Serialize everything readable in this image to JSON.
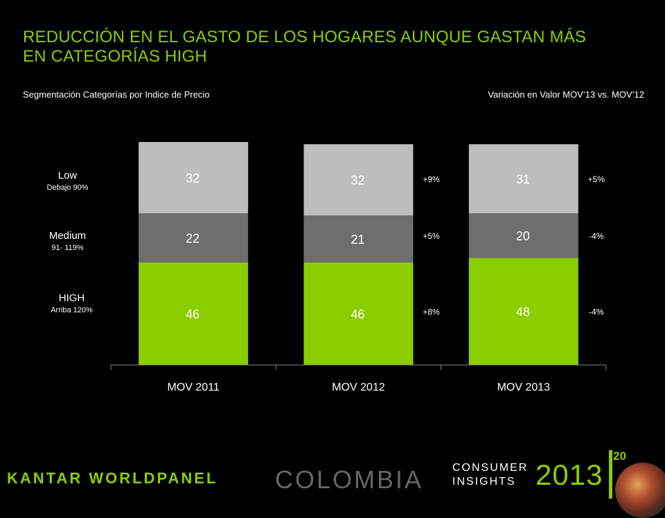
{
  "header": {
    "title_line1": "REDUCCIÓN EN EL GASTO DE LOS HOGARES AUNQUE GASTAN MÁS",
    "title_line2": "EN CATEGORÍAS HIGH",
    "subtitle_left": "Segmentación Categorías por Indice de Precio",
    "subtitle_right": "Variación  en Valor MOV’13 vs. MOV’12"
  },
  "segments": [
    {
      "name": "Low",
      "range": "Debajo 90%"
    },
    {
      "name": "Medium",
      "range": "91- 119%"
    },
    {
      "name": "HIGH",
      "range": "Arriba 120%"
    }
  ],
  "chart_data": {
    "type": "bar",
    "stacked": true,
    "normalized_100": true,
    "categories": [
      "MOV 2011",
      "MOV 2012",
      "MOV 2013"
    ],
    "series": [
      {
        "key": "high",
        "values": [
          46,
          46,
          48
        ],
        "color": "#8ccd00"
      },
      {
        "key": "medium",
        "values": [
          22,
          21,
          20
        ],
        "color": "#6e6e6e"
      },
      {
        "key": "low",
        "values": [
          32,
          32,
          31
        ],
        "color": "#bdbdbd"
      }
    ],
    "variation_labels": [
      {
        "after_category": "MOV 2012",
        "low": "+9%",
        "medium": "+5%",
        "high": "+8%"
      },
      {
        "after_category": "MOV 2013",
        "low": "+5%",
        "medium": "-4%",
        "high": "-4%"
      }
    ],
    "ylim": [
      0,
      100
    ]
  },
  "footer": {
    "brand": "KANTAR WORLDPANEL",
    "country": "COLOMBIA",
    "ci_line1": "CONSUMER",
    "ci_line2": "INSIGHTS",
    "year": "2013",
    "page_number": "20"
  },
  "colors": {
    "accent": "#8ccd00",
    "background": "#000000"
  }
}
